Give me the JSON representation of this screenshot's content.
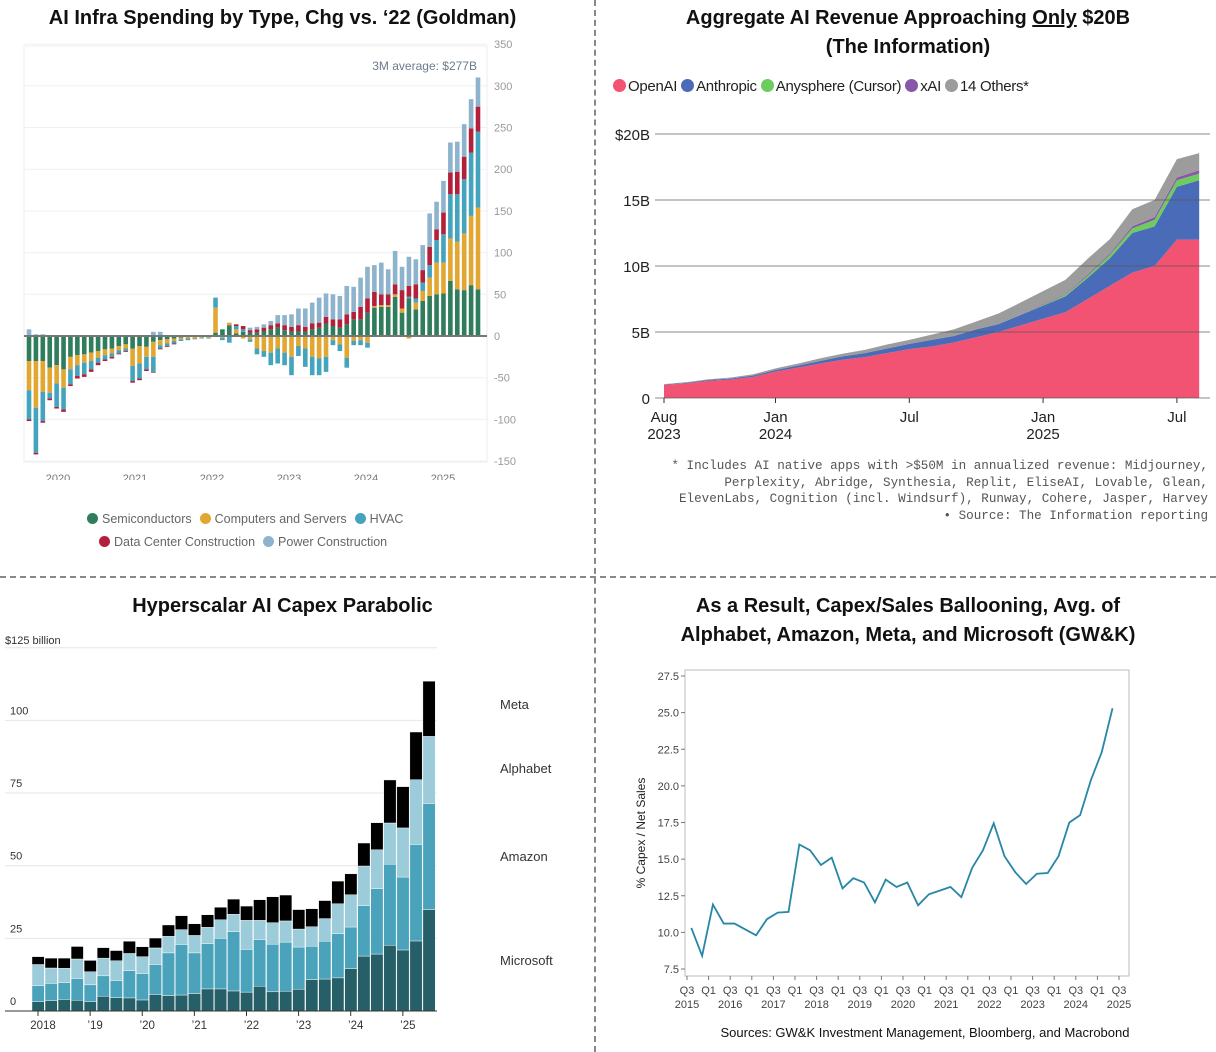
{
  "chart_data": [
    {
      "type": "bar",
      "stacked": true,
      "title": "AI Infra Spending by Type, Chg vs. ‘22 (Goldman)",
      "annotation": "3M average: $277B",
      "xlabel": "",
      "ylabel": "",
      "ylim": [
        -150,
        350
      ],
      "yticks": [
        "350",
        "300",
        "250",
        "200",
        "150",
        "100",
        "50",
        "0",
        "-50",
        "-100",
        "-150"
      ],
      "xticks": [
        "2020",
        "2021",
        "2022",
        "2023",
        "2024",
        "2025"
      ],
      "legend": [
        "Semiconductors",
        "Computers and Servers",
        "HVAC",
        "Data Center Construction",
        "Power Construction"
      ],
      "colors": [
        "#2f7d5c",
        "#e2a733",
        "#45a4bd",
        "#b3203a",
        "#8db3cd"
      ],
      "series": [
        {
          "name": "Semiconductors",
          "values": [
            -30,
            -30,
            -30,
            -38,
            -35,
            -40,
            -25,
            -23,
            -22,
            -20,
            -18,
            -16,
            -15,
            -12,
            -10,
            -15,
            -12,
            -13,
            -7,
            -5,
            -4,
            -3,
            -2,
            -1,
            -1,
            0,
            -1,
            4,
            8,
            13,
            3,
            5,
            4,
            4,
            6,
            8,
            10,
            7,
            5,
            6,
            5,
            8,
            10,
            15,
            12,
            10,
            14,
            20,
            20,
            28,
            34,
            35,
            35,
            47,
            28,
            45,
            32,
            42,
            48,
            50,
            51,
            66,
            56,
            55,
            61,
            56
          ]
        },
        {
          "name": "Computers and Servers",
          "values": [
            -35,
            -56,
            -37,
            -30,
            -22,
            -22,
            -15,
            -12,
            -10,
            -10,
            -8,
            -7,
            -6,
            -5,
            -5,
            -21,
            -21,
            -12,
            -18,
            -6,
            -5,
            -3,
            -2,
            -2,
            -2,
            -2,
            -1,
            30,
            -2,
            3,
            5,
            -3,
            -4,
            -15,
            -18,
            -20,
            -15,
            -20,
            -25,
            -12,
            -15,
            -25,
            -27,
            -25,
            -5,
            -10,
            -26,
            -6,
            -5,
            -8,
            2,
            2,
            2,
            3,
            5,
            -3,
            8,
            12,
            22,
            38,
            37,
            51,
            57,
            68,
            83,
            98
          ]
        },
        {
          "name": "HVAC",
          "values": [
            -35,
            -54,
            -35,
            -7,
            -28,
            -26,
            -18,
            -13,
            -14,
            -10,
            -6,
            -5,
            -4,
            -4,
            -3,
            -18,
            -18,
            -15,
            -18,
            -4,
            -3,
            -3,
            -2,
            -2,
            -1,
            -1,
            -1,
            12,
            -3,
            -8,
            4,
            3,
            -3,
            -7,
            -7,
            -15,
            -18,
            -15,
            -22,
            -12,
            -22,
            -22,
            -20,
            -18,
            -6,
            -8,
            -12,
            -5,
            -6,
            -6,
            0,
            0,
            -1,
            0,
            0,
            2,
            5,
            10,
            15,
            27,
            34,
            53,
            57,
            65,
            76,
            91
          ]
        },
        {
          "name": "Data Center Construction",
          "values": [
            -2,
            -2,
            -2,
            -2,
            -2,
            -3,
            -2,
            -3,
            -3,
            -3,
            -3,
            -2,
            -2,
            -1,
            -1,
            -2,
            -2,
            -2,
            -1,
            -1,
            -1,
            -1,
            0,
            0,
            0,
            0,
            0,
            0,
            0,
            0,
            2,
            4,
            3,
            4,
            4,
            5,
            5,
            6,
            6,
            7,
            6,
            7,
            6,
            8,
            8,
            10,
            12,
            9,
            15,
            17,
            17,
            13,
            13,
            12,
            22,
            13,
            17,
            15,
            22,
            13,
            26,
            26,
            27,
            27,
            29,
            30
          ]
        },
        {
          "name": "Power Construction",
          "values": [
            8,
            2,
            2,
            0,
            0,
            0,
            0,
            0,
            0,
            0,
            0,
            0,
            0,
            0,
            0,
            0,
            0,
            0,
            5,
            5,
            0,
            0,
            0,
            0,
            0,
            0,
            0,
            0,
            0,
            0,
            0,
            0,
            3,
            3,
            4,
            5,
            10,
            12,
            15,
            20,
            22,
            25,
            30,
            28,
            30,
            28,
            34,
            30,
            35,
            38,
            32,
            38,
            30,
            40,
            28,
            35,
            30,
            30,
            40,
            33,
            38,
            36,
            36,
            39,
            35,
            35
          ]
        }
      ]
    },
    {
      "type": "area",
      "stacked": true,
      "title": "Aggregate AI Revenue Approaching",
      "title_emph": "Only",
      "title_end": "$20B",
      "title_line2": "(The Information)",
      "ylim": [
        0,
        20
      ],
      "yticks": [
        "0",
        "5B",
        "10B",
        "15B",
        "$20B"
      ],
      "xticks": [
        {
          "l1": "Aug",
          "l2": "2023",
          "i": 0
        },
        {
          "l1": "Jan",
          "l2": "2024",
          "i": 5
        },
        {
          "l1": "Jul",
          "l2": "",
          "i": 11
        },
        {
          "l1": "Jan",
          "l2": "2025",
          "i": 17
        },
        {
          "l1": "Jul",
          "l2": "",
          "i": 23
        }
      ],
      "x": [
        "Aug 2023",
        "Sep 2023",
        "Oct 2023",
        "Nov 2023",
        "Dec 2023",
        "Jan 2024",
        "Feb 2024",
        "Mar 2024",
        "Apr 2024",
        "May 2024",
        "Jun 2024",
        "Jul 2024",
        "Aug 2024",
        "Sep 2024",
        "Oct 2024",
        "Nov 2024",
        "Dec 2024",
        "Jan 2025",
        "Feb 2025",
        "Mar 2025",
        "Apr 2025",
        "May 2025",
        "Jun 2025",
        "Jul 2025",
        "Aug 2025"
      ],
      "legend": [
        "OpenAI",
        "Anthropic",
        "Anysphere (Cursor)",
        "xAI",
        "14 Others*"
      ],
      "colors": [
        "#f25373",
        "#4a6bb8",
        "#6dcc5e",
        "#8a56a9",
        "#9c9c9c"
      ],
      "series": [
        {
          "name": "OpenAI",
          "values": [
            1.0,
            1.1,
            1.3,
            1.4,
            1.6,
            2.0,
            2.3,
            2.6,
            2.9,
            3.1,
            3.4,
            3.7,
            3.9,
            4.2,
            4.6,
            5.0,
            5.5,
            6.0,
            6.5,
            7.5,
            8.5,
            9.5,
            10.0,
            12.0,
            12.0
          ]
        },
        {
          "name": "Anthropic",
          "values": [
            0.03,
            0.05,
            0.07,
            0.08,
            0.1,
            0.12,
            0.15,
            0.2,
            0.25,
            0.3,
            0.35,
            0.4,
            0.5,
            0.5,
            0.6,
            0.6,
            0.8,
            1.0,
            1.2,
            1.6,
            2.1,
            3.0,
            3.0,
            4.0,
            4.5
          ]
        },
        {
          "name": "Anysphere (Cursor)",
          "values": [
            0,
            0,
            0,
            0,
            0,
            0,
            0,
            0,
            0,
            0,
            0,
            0,
            0,
            0,
            0,
            0,
            0.02,
            0.05,
            0.1,
            0.15,
            0.25,
            0.35,
            0.5,
            0.5,
            0.5
          ]
        },
        {
          "name": "xAI",
          "values": [
            0,
            0,
            0,
            0,
            0,
            0,
            0,
            0,
            0,
            0,
            0,
            0,
            0,
            0,
            0,
            0,
            0.02,
            0.05,
            0.05,
            0.1,
            0.1,
            0.15,
            0.2,
            0.2,
            0.25
          ]
        },
        {
          "name": "14 Others*",
          "values": [
            0.02,
            0.05,
            0.05,
            0.07,
            0.1,
            0.12,
            0.15,
            0.2,
            0.2,
            0.25,
            0.3,
            0.3,
            0.4,
            0.5,
            0.6,
            0.8,
            0.9,
            1.0,
            1.1,
            1.2,
            1.1,
            1.3,
            1.3,
            1.4,
            1.3
          ]
        }
      ],
      "footnote": "* Includes AI native apps with >$50M in annualized revenue: Midjourney,\nPerplexity, Abridge, Synthesia, Replit, EliseAI, Lovable, Glean,\nElevenLabs, Cognition (incl. Windsurf), Runway, Cohere, Jasper, Harvey\n• Source: The Information reporting"
    },
    {
      "type": "bar",
      "stacked": true,
      "title": "Hyperscalar AI Capex Parabolic",
      "unit_label": "$125 billion",
      "ylim": [
        0,
        125
      ],
      "yticks": [
        "100",
        "75",
        "50",
        "25",
        "0"
      ],
      "xticks": [
        "2018",
        "’19",
        "’20",
        "’21",
        "’22",
        "’23",
        "’24",
        "’25"
      ],
      "legend": [
        "Meta",
        "Alphabet",
        "Amazon",
        "Microsoft"
      ],
      "colors": [
        "#275f69",
        "#4aa3bb",
        "#9ccbd9",
        "#000000"
      ],
      "series": [
        {
          "name": "Microsoft",
          "values": [
            3.2,
            3.6,
            4.0,
            3.7,
            3.2,
            5.1,
            4.6,
            4.5,
            3.8,
            5.7,
            5.3,
            5.5,
            6.0,
            7.6,
            7.6,
            6.9,
            6.5,
            8.5,
            6.6,
            6.8,
            7.5,
            10.8,
            11.0,
            11.4,
            14.6,
            18.9,
            19.6,
            22.6,
            21.0,
            24.1,
            34.9
          ]
        },
        {
          "name": "Amazon",
          "values": [
            5.5,
            5.9,
            5.8,
            7.5,
            5.8,
            7.0,
            5.9,
            9.4,
            9.1,
            10.3,
            14.7,
            17.4,
            14.0,
            15.6,
            17.4,
            20.4,
            14.7,
            16.1,
            16.4,
            16.9,
            14.5,
            11.5,
            13.0,
            15.2,
            14.3,
            17.3,
            22.5,
            27.9,
            25.1,
            33.2,
            36.5
          ]
        },
        {
          "name": "Alphabet",
          "values": [
            7.3,
            5.3,
            4.9,
            6.7,
            4.5,
            6.1,
            6.8,
            5.9,
            5.8,
            5.7,
            5.7,
            5.1,
            6.0,
            5.6,
            6.4,
            6.0,
            10.0,
            6.6,
            7.4,
            7.3,
            6.2,
            6.7,
            7.8,
            10.3,
            11.1,
            13.7,
            13.4,
            14.2,
            16.9,
            22.3,
            23.1
          ]
        },
        {
          "name": "Meta",
          "values": [
            2.7,
            3.4,
            3.5,
            4.3,
            3.9,
            3.6,
            3.5,
            4.2,
            3.4,
            3.4,
            3.9,
            4.8,
            4.0,
            4.3,
            4.3,
            5.2,
            4.9,
            7.1,
            8.9,
            8.9,
            6.7,
            6.2,
            6.2,
            7.8,
            7.2,
            7.9,
            9.3,
            14.8,
            14.2,
            16.4,
            19.0
          ]
        }
      ]
    },
    {
      "type": "line",
      "title": "As a Result, Capex/Sales Ballooning, Avg. of",
      "title_line2": "Alphabet, Amazon, Meta, and Microsoft (GW&K)",
      "ylabel": "% Capex / Net Sales",
      "ylim": [
        7.5,
        27.5
      ],
      "yticks": [
        "27.5",
        "25.0",
        "22.5",
        "20.0",
        "17.5",
        "15.0",
        "12.5",
        "10.0",
        "7.5"
      ],
      "xticks": [
        {
          "q": "Q3",
          "y": "2015"
        },
        {
          "q": "Q1",
          "y": ""
        },
        {
          "q": "Q3",
          "y": "2016"
        },
        {
          "q": "Q1",
          "y": ""
        },
        {
          "q": "Q3",
          "y": "2017"
        },
        {
          "q": "Q1",
          "y": ""
        },
        {
          "q": "Q3",
          "y": "2018"
        },
        {
          "q": "Q1",
          "y": ""
        },
        {
          "q": "Q3",
          "y": "2019"
        },
        {
          "q": "Q1",
          "y": ""
        },
        {
          "q": "Q3",
          "y": "2020"
        },
        {
          "q": "Q1",
          "y": ""
        },
        {
          "q": "Q3",
          "y": "2021"
        },
        {
          "q": "Q1",
          "y": ""
        },
        {
          "q": "Q3",
          "y": "2022"
        },
        {
          "q": "Q1",
          "y": ""
        },
        {
          "q": "Q3",
          "y": "2023"
        },
        {
          "q": "Q1",
          "y": ""
        },
        {
          "q": "Q3",
          "y": "2024"
        },
        {
          "q": "Q1",
          "y": ""
        },
        {
          "q": "Q3",
          "y": "2025"
        }
      ],
      "series": [
        {
          "name": "Capex / Net Sales",
          "color": "#2787a6",
          "values": [
            10.3,
            8.4,
            11.9,
            10.6,
            10.6,
            10.2,
            9.8,
            10.9,
            11.35,
            11.4,
            16.0,
            15.6,
            14.6,
            15.1,
            13.0,
            13.7,
            13.4,
            12.05,
            13.6,
            13.1,
            13.4,
            11.85,
            12.6,
            12.85,
            13.1,
            12.4,
            14.4,
            15.6,
            17.45,
            15.2,
            14.1,
            13.3,
            14.0,
            14.05,
            15.2,
            17.5,
            18.0,
            20.4,
            22.3,
            25.3
          ]
        }
      ],
      "source": "Sources: GW&K Investment Management, Bloomberg, and Macrobond"
    }
  ]
}
